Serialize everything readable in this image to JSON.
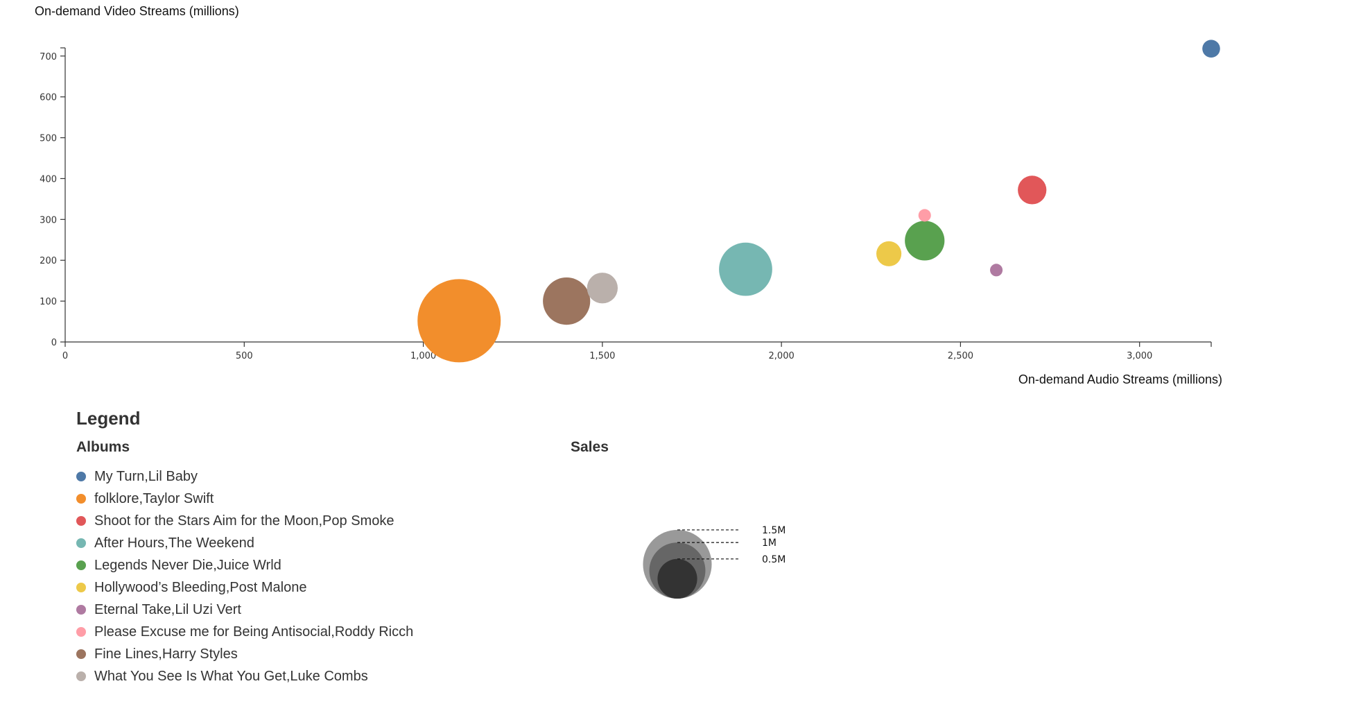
{
  "chart_data": {
    "type": "scatter",
    "title": "",
    "xlabel": "On-demand Audio Streams (millions)",
    "ylabel": "On-demand Video Streams (millions)",
    "xlim": [
      0,
      3200
    ],
    "ylim": [
      0,
      720
    ],
    "xticks": [
      0,
      500,
      1000,
      1500,
      2000,
      2500,
      3000
    ],
    "yticks": [
      0,
      100,
      200,
      300,
      400,
      500,
      600,
      700
    ],
    "grid": false,
    "series": [
      {
        "name": "My Turn,Lil Baby",
        "color": "#4e79a7",
        "x": 3200,
        "y": 718,
        "sales": 0.1
      },
      {
        "name": "folklore,Taylor Swift",
        "color": "#f28e2c",
        "x": 1100,
        "y": 52,
        "sales": 2.2
      },
      {
        "name": "Shoot for the Stars Aim for the Moon,Pop Smoke",
        "color": "#e15759",
        "x": 2700,
        "y": 372,
        "sales": 0.26
      },
      {
        "name": "After Hours,The Weekend",
        "color": "#76b7b2",
        "x": 1900,
        "y": 178,
        "sales": 0.9
      },
      {
        "name": "Legends Never Die,Juice Wrld",
        "color": "#59a14f",
        "x": 2400,
        "y": 248,
        "sales": 0.5
      },
      {
        "name": "Hollywood’s Bleeding,Post Malone",
        "color": "#edc949",
        "x": 2300,
        "y": 216,
        "sales": 0.2
      },
      {
        "name": "Eternal Take,Lil Uzi Vert",
        "color": "#af7aa1",
        "x": 2600,
        "y": 176,
        "sales": 0.05
      },
      {
        "name": "Please Excuse me for Being Antisocial,Roddy Ricch",
        "color": "#ff9da7",
        "x": 2400,
        "y": 310,
        "sales": 0.05
      },
      {
        "name": "Fine Lines,Harry Styles",
        "color": "#9c755f",
        "x": 1400,
        "y": 100,
        "sales": 0.71
      },
      {
        "name": "What You See Is What You Get,Luke Combs",
        "color": "#bab0ab",
        "x": 1500,
        "y": 132,
        "sales": 0.3
      }
    ]
  },
  "legend": {
    "title": "Legend",
    "albums_title": "Albums",
    "sales_title": "Sales",
    "size_key": [
      {
        "label": "1.5M",
        "value": 1.5,
        "color": "#999999"
      },
      {
        "label": "1M",
        "value": 1.0,
        "color": "#666666"
      },
      {
        "label": "0.5M",
        "value": 0.5,
        "color": "#333333"
      }
    ]
  }
}
